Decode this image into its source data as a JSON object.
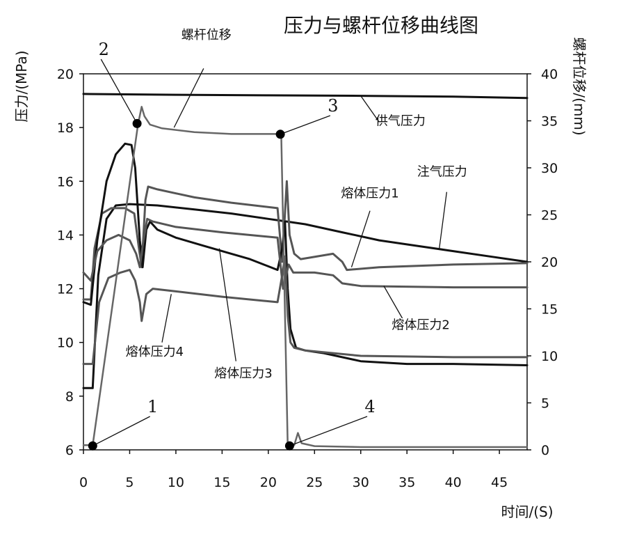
{
  "chart_data": {
    "type": "line",
    "title": "压力与螺杆位移曲线图",
    "xlabel": "时间/(S)",
    "ylabel_left": "压力/(MPa)",
    "ylabel_right": "螺杆位移/(mm)",
    "xlim": [
      0,
      48
    ],
    "ylim_left": [
      6,
      20
    ],
    "ylim_right": [
      0,
      40
    ],
    "x_ticks": [
      0,
      5,
      10,
      15,
      20,
      25,
      30,
      35,
      40,
      45
    ],
    "y_ticks_left": [
      6,
      8,
      10,
      12,
      14,
      16,
      18,
      20
    ],
    "y_ticks_right": [
      0,
      5,
      10,
      15,
      20,
      25,
      30,
      35,
      40
    ],
    "grid": false,
    "series": [
      {
        "name": "供气压力",
        "axis": "left",
        "color": "#111111",
        "width": 3,
        "points": [
          [
            0,
            19.25
          ],
          [
            10,
            19.22
          ],
          [
            20,
            19.2
          ],
          [
            30,
            19.18
          ],
          [
            40,
            19.15
          ],
          [
            48,
            19.1
          ]
        ]
      },
      {
        "name": "注气压力",
        "axis": "left",
        "color": "#111111",
        "width": 3,
        "points": [
          [
            0,
            8.3
          ],
          [
            1.0,
            8.3
          ],
          [
            1.6,
            12.5
          ],
          [
            2.5,
            14.6
          ],
          [
            3.5,
            15.1
          ],
          [
            5,
            15.15
          ],
          [
            8,
            15.1
          ],
          [
            12,
            14.95
          ],
          [
            16,
            14.8
          ],
          [
            20,
            14.6
          ],
          [
            22,
            14.5
          ],
          [
            24,
            14.4
          ],
          [
            28,
            14.1
          ],
          [
            32,
            13.8
          ],
          [
            36,
            13.6
          ],
          [
            40,
            13.4
          ],
          [
            44,
            13.2
          ],
          [
            48,
            13.0
          ]
        ]
      },
      {
        "name": "熔体压力1",
        "axis": "left",
        "color": "#555555",
        "width": 3,
        "points": [
          [
            0,
            11.6
          ],
          [
            0.8,
            11.6
          ],
          [
            1.2,
            13.5
          ],
          [
            2,
            14.8
          ],
          [
            3,
            15.0
          ],
          [
            4.5,
            15.0
          ],
          [
            5.5,
            14.8
          ],
          [
            6,
            13.5
          ],
          [
            6.3,
            12.8
          ],
          [
            6.7,
            15.3
          ],
          [
            7,
            15.8
          ],
          [
            8,
            15.7
          ],
          [
            12,
            15.4
          ],
          [
            16,
            15.2
          ],
          [
            21,
            15.0
          ],
          [
            21.5,
            13.0
          ],
          [
            22,
            16.0
          ],
          [
            22.3,
            14.0
          ],
          [
            22.8,
            13.3
          ],
          [
            23.5,
            13.1
          ],
          [
            27,
            13.3
          ],
          [
            28,
            13.0
          ],
          [
            28.5,
            12.7
          ],
          [
            32,
            12.8
          ],
          [
            40,
            12.9
          ],
          [
            48,
            12.95
          ]
        ]
      },
      {
        "name": "熔体压力3",
        "axis": "left",
        "color": "#111111",
        "width": 3,
        "points": [
          [
            0,
            11.5
          ],
          [
            0.8,
            11.4
          ],
          [
            1.5,
            13.8
          ],
          [
            2.5,
            16.0
          ],
          [
            3.5,
            17.0
          ],
          [
            4.5,
            17.4
          ],
          [
            5.2,
            17.35
          ],
          [
            5.6,
            16.5
          ],
          [
            6.1,
            13.8
          ],
          [
            6.4,
            12.8
          ],
          [
            6.8,
            14.2
          ],
          [
            7.2,
            14.5
          ],
          [
            8,
            14.2
          ],
          [
            10,
            13.9
          ],
          [
            13,
            13.6
          ],
          [
            16,
            13.3
          ],
          [
            18,
            13.1
          ],
          [
            21,
            12.7
          ],
          [
            21.5,
            13.5
          ],
          [
            21.8,
            14.5
          ],
          [
            22.1,
            12.0
          ],
          [
            22.4,
            10.5
          ],
          [
            23,
            9.8
          ],
          [
            24,
            9.7
          ],
          [
            26,
            9.6
          ],
          [
            30,
            9.3
          ],
          [
            35,
            9.2
          ],
          [
            40,
            9.2
          ],
          [
            48,
            9.15
          ]
        ]
      },
      {
        "name": "熔体压力2",
        "axis": "left",
        "color": "#555555",
        "width": 3,
        "points": [
          [
            0,
            12.6
          ],
          [
            0.8,
            12.3
          ],
          [
            1.5,
            13.4
          ],
          [
            2.5,
            13.8
          ],
          [
            3.8,
            14.0
          ],
          [
            5,
            13.8
          ],
          [
            5.7,
            13.3
          ],
          [
            6.1,
            12.8
          ],
          [
            6.4,
            13.6
          ],
          [
            6.9,
            14.6
          ],
          [
            7.5,
            14.5
          ],
          [
            10,
            14.3
          ],
          [
            15,
            14.1
          ],
          [
            21,
            13.9
          ],
          [
            21.6,
            12.0
          ],
          [
            22.2,
            12.9
          ],
          [
            22.7,
            12.6
          ],
          [
            25,
            12.6
          ],
          [
            27,
            12.5
          ],
          [
            28,
            12.2
          ],
          [
            30,
            12.1
          ],
          [
            40,
            12.05
          ],
          [
            48,
            12.05
          ]
        ]
      },
      {
        "name": "熔体压力4",
        "axis": "left",
        "color": "#555555",
        "width": 3,
        "points": [
          [
            0,
            9.2
          ],
          [
            1.0,
            9.2
          ],
          [
            1.7,
            11.5
          ],
          [
            2.7,
            12.4
          ],
          [
            4,
            12.6
          ],
          [
            5,
            12.7
          ],
          [
            5.6,
            12.3
          ],
          [
            6.1,
            11.5
          ],
          [
            6.3,
            10.8
          ],
          [
            6.8,
            11.8
          ],
          [
            7.5,
            12.0
          ],
          [
            10,
            11.9
          ],
          [
            15,
            11.7
          ],
          [
            21,
            11.5
          ],
          [
            21.5,
            12.5
          ],
          [
            21.8,
            13.2
          ],
          [
            22.1,
            11.0
          ],
          [
            22.4,
            10.0
          ],
          [
            22.8,
            9.8
          ],
          [
            24,
            9.7
          ],
          [
            30,
            9.5
          ],
          [
            40,
            9.45
          ],
          [
            48,
            9.45
          ]
        ]
      },
      {
        "name": "螺杆位移",
        "axis": "right",
        "color": "#666666",
        "width": 2.5,
        "points": [
          [
            0,
            0.5
          ],
          [
            1.0,
            0.5
          ],
          [
            5.9,
            34.6
          ],
          [
            6.3,
            36.5
          ],
          [
            6.6,
            35.5
          ],
          [
            7.2,
            34.6
          ],
          [
            8.5,
            34.2
          ],
          [
            12,
            33.8
          ],
          [
            16,
            33.6
          ],
          [
            21.4,
            33.6
          ],
          [
            22.1,
            0.6
          ],
          [
            22.8,
            0.5
          ],
          [
            23.2,
            1.8
          ],
          [
            23.6,
            0.7
          ],
          [
            25,
            0.4
          ],
          [
            30,
            0.3
          ],
          [
            40,
            0.3
          ],
          [
            48,
            0.3
          ]
        ]
      }
    ],
    "markers": [
      {
        "label": "1",
        "x": 1.0,
        "y": 6.15,
        "axis": "left",
        "label_x": 7.5,
        "label_y": 7.4
      },
      {
        "label": "2",
        "x": 5.8,
        "y": 18.15,
        "axis": "left",
        "label_x": 2.2,
        "label_y": 20.7
      },
      {
        "label": "3",
        "x": 21.3,
        "y": 17.75,
        "axis": "left",
        "label_x": 27.0,
        "label_y": 18.6
      },
      {
        "label": "4",
        "x": 22.3,
        "y": 6.15,
        "axis": "left",
        "label_x": 31.0,
        "label_y": 7.4
      }
    ],
    "annotations": [
      {
        "text": "螺杆位移",
        "text_x": 13.3,
        "text_y": 21.3,
        "line_from": [
          13.0,
          20.2
        ],
        "line_to": [
          9.8,
          18.0
        ]
      },
      {
        "text": "供气压力",
        "text_x": 34.3,
        "text_y": 18.1,
        "line_from": [
          32.0,
          18.2
        ],
        "line_to": [
          30.0,
          19.18
        ]
      },
      {
        "text": "注气压力",
        "text_x": 38.8,
        "text_y": 16.2,
        "line_from": [
          39.3,
          15.6
        ],
        "line_to": [
          38.5,
          13.5
        ]
      },
      {
        "text": "熔体压力1",
        "text_x": 31.0,
        "text_y": 15.4,
        "line_from": [
          31.0,
          14.9
        ],
        "line_to": [
          29.0,
          12.8
        ]
      },
      {
        "text": "熔体压力2",
        "text_x": 36.5,
        "text_y": 10.5,
        "line_from": [
          34.5,
          10.9
        ],
        "line_to": [
          32.5,
          12.1
        ]
      },
      {
        "text": "熔体压力3",
        "text_x": 17.3,
        "text_y": 8.7,
        "line_from": [
          16.5,
          9.3
        ],
        "line_to": [
          14.7,
          13.5
        ]
      },
      {
        "text": "熔体压力4",
        "text_x": 7.7,
        "text_y": 9.5,
        "line_from": [
          8.5,
          10.0
        ],
        "line_to": [
          9.5,
          11.8
        ]
      }
    ]
  }
}
